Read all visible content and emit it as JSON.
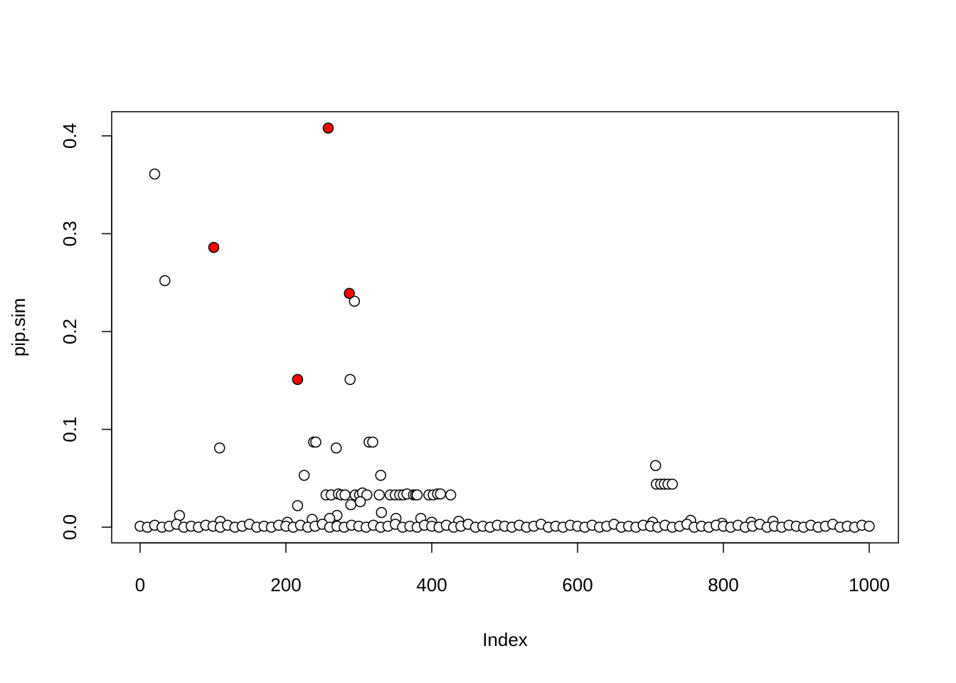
{
  "chart_data": {
    "type": "scatter",
    "xlabel": "Index",
    "ylabel": "pip.sim",
    "xlim": [
      -39,
      1040
    ],
    "ylim": [
      -0.016,
      0.4247
    ],
    "xticks": [
      0,
      200,
      400,
      600,
      800,
      1000
    ],
    "yticks": [
      {
        "value": 0,
        "label": "0.0"
      },
      0.1,
      0.2,
      0.3,
      0.4
    ],
    "series": [
      {
        "color": "#000000",
        "fill": "#ff0000",
        "x": [
          258,
          101,
          287,
          216
        ],
        "values": [
          0.408,
          0.286,
          0.239,
          0.151
        ]
      },
      {
        "color": "#000000",
        "fill": "#ffffff",
        "x": [
          20,
          34,
          294,
          288,
          109,
          238,
          241,
          269,
          314,
          319,
          225,
          330,
          707,
          708,
          714,
          719,
          724,
          730,
          216,
          54,
          255,
          262,
          272,
          276,
          281,
          295,
          301,
          305,
          311,
          328,
          343,
          350,
          356,
          361,
          366,
          375,
          378,
          380,
          396,
          402,
          408,
          412,
          426,
          289,
          302,
          331,
          270,
          385,
          236,
          351,
          110,
          202,
          400,
          437,
          703,
          755,
          798,
          838,
          868,
          260,
          0,
          10,
          20,
          30,
          40,
          50,
          60,
          70,
          80,
          90,
          100,
          110,
          120,
          130,
          140,
          150,
          160,
          170,
          180,
          190,
          200,
          210,
          220,
          230,
          240,
          250,
          260,
          270,
          280,
          290,
          300,
          310,
          320,
          330,
          340,
          350,
          360,
          370,
          380,
          390,
          400,
          410,
          420,
          430,
          440,
          450,
          460,
          470,
          480,
          490,
          500,
          510,
          520,
          530,
          540,
          550,
          560,
          570,
          580,
          590,
          600,
          610,
          620,
          630,
          640,
          650,
          660,
          670,
          680,
          690,
          700,
          710,
          720,
          730,
          740,
          750,
          760,
          770,
          780,
          790,
          800,
          810,
          820,
          830,
          840,
          850,
          860,
          870,
          880,
          890,
          900,
          910,
          920,
          930,
          940,
          950,
          960,
          970,
          980,
          990,
          1000
        ],
        "values": [
          0.361,
          0.252,
          0.231,
          0.151,
          0.081,
          0.087,
          0.087,
          0.081,
          0.087,
          0.087,
          0.053,
          0.053,
          0.063,
          0.044,
          0.044,
          0.044,
          0.044,
          0.044,
          0.022,
          0.012,
          0.033,
          0.033,
          0.034,
          0.033,
          0.033,
          0.033,
          0.033,
          0.035,
          0.033,
          0.033,
          0.033,
          0.033,
          0.033,
          0.033,
          0.034,
          0.033,
          0.033,
          0.033,
          0.033,
          0.033,
          0.034,
          0.034,
          0.033,
          0.023,
          0.026,
          0.015,
          0.012,
          0.009,
          0.008,
          0.009,
          0.006,
          0.005,
          0.005,
          0.006,
          0.005,
          0.007,
          0.004,
          0.005,
          0.006,
          0.009,
          0.001,
          0,
          0.002,
          0,
          0.001,
          0.003,
          0,
          0.001,
          0,
          0.002,
          0.001,
          0,
          0.002,
          0,
          0.001,
          0.003,
          0,
          0.001,
          0,
          0.002,
          0.001,
          0,
          0.002,
          0,
          0.001,
          0.003,
          0,
          0.001,
          0,
          0.002,
          0.001,
          0,
          0.002,
          0,
          0.001,
          0.003,
          0,
          0.001,
          0,
          0.002,
          0.001,
          0,
          0.002,
          0,
          0.001,
          0.003,
          0,
          0.001,
          0,
          0.002,
          0.001,
          0,
          0.002,
          0,
          0.001,
          0.003,
          0,
          0.001,
          0,
          0.002,
          0.001,
          0,
          0.002,
          0,
          0.001,
          0.003,
          0,
          0.001,
          0,
          0.002,
          0.001,
          0,
          0.002,
          0,
          0.001,
          0.003,
          0,
          0.001,
          0,
          0.002,
          0.001,
          0,
          0.002,
          0,
          0.001,
          0.003,
          0,
          0.001,
          0,
          0.002,
          0.001,
          0,
          0.002,
          0,
          0.001,
          0.003,
          0,
          0.001,
          0,
          0.002,
          0.001
        ]
      }
    ]
  }
}
